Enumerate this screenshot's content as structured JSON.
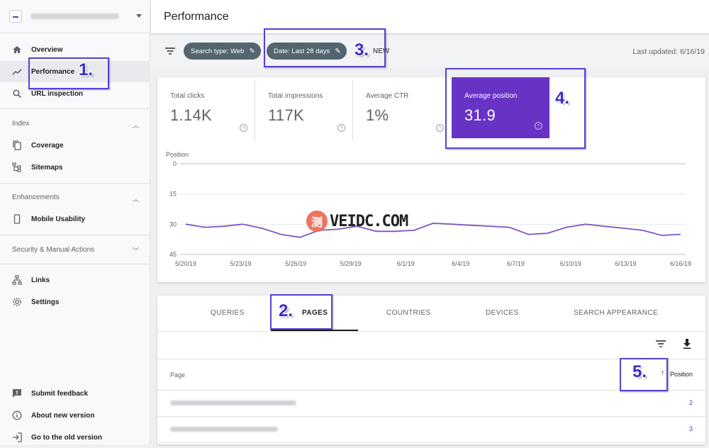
{
  "sidebar": {
    "top_items": [
      {
        "label": "Overview",
        "icon": "home-icon"
      },
      {
        "label": "Performance",
        "icon": "trending-up-icon"
      },
      {
        "label": "URL inspection",
        "icon": "search-icon"
      }
    ],
    "sections": [
      {
        "title": "Index",
        "items": [
          {
            "label": "Coverage",
            "icon": "copy-icon"
          },
          {
            "label": "Sitemaps",
            "icon": "sitemap-icon"
          }
        ]
      },
      {
        "title": "Enhancements",
        "items": [
          {
            "label": "Mobile Usability",
            "icon": "phone-icon"
          }
        ]
      },
      {
        "title": "Security & Manual Actions",
        "items": []
      }
    ],
    "tools": [
      {
        "label": "Links",
        "icon": "links-icon"
      },
      {
        "label": "Settings",
        "icon": "gear-icon"
      }
    ],
    "footer": [
      {
        "label": "Submit feedback",
        "icon": "feedback-icon"
      },
      {
        "label": "About new version",
        "icon": "info-icon"
      },
      {
        "label": "Go to the old version",
        "icon": "exit-icon"
      }
    ]
  },
  "header": {
    "title": "Performance"
  },
  "filters": {
    "chips": [
      "Search type: Web",
      "Date: Last 28 days"
    ],
    "new_label": "NEW",
    "last_updated": "Last updated: 6/16/19"
  },
  "metrics": [
    {
      "label": "Total clicks",
      "value": "1.14K",
      "selected": false
    },
    {
      "label": "Total impressions",
      "value": "117K",
      "selected": false
    },
    {
      "label": "Average CTR",
      "value": "1%",
      "selected": false
    },
    {
      "label": "Average position",
      "value": "31.9",
      "selected": true
    }
  ],
  "chart_data": {
    "type": "line",
    "ylabel": "Position",
    "yticks": [
      "0",
      "15",
      "30",
      "45"
    ],
    "ylim": [
      0,
      45
    ],
    "y_inverted": true,
    "xticks": [
      "5/20/19",
      "5/23/19",
      "5/26/19",
      "5/29/19",
      "6/1/19",
      "6/4/19",
      "6/7/19",
      "6/10/19",
      "6/13/19",
      "6/16/19"
    ],
    "series": [
      {
        "color": "#7e57c2",
        "values": [
          30,
          31.5,
          31,
          30,
          32,
          35,
          36.5,
          33,
          32.5,
          31,
          33.5,
          33.5,
          33,
          29.5,
          30,
          30.5,
          31,
          31.5,
          35,
          34.5,
          31.5,
          30,
          31,
          32,
          33,
          35.5,
          35
        ]
      }
    ],
    "grid": true
  },
  "tabs": [
    "QUERIES",
    "PAGES",
    "COUNTRIES",
    "DEVICES",
    "SEARCH APPEARANCE"
  ],
  "active_tab": "PAGES",
  "table": {
    "columns": [
      "Page",
      "Position"
    ],
    "rows": [
      {
        "position": "2"
      },
      {
        "position": "3"
      }
    ]
  },
  "annotations": [
    "1.",
    "2.",
    "3.",
    "4.",
    "5."
  ],
  "watermark": {
    "badge": "测",
    "text": "VEIDC.COM"
  },
  "accent": "#6733c5"
}
